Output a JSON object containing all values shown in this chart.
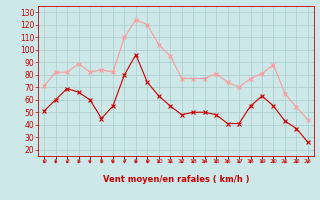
{
  "x": [
    0,
    1,
    2,
    3,
    4,
    5,
    6,
    7,
    8,
    9,
    10,
    11,
    12,
    13,
    14,
    15,
    16,
    17,
    18,
    19,
    20,
    21,
    22,
    23
  ],
  "vent_moyen": [
    51,
    60,
    69,
    66,
    60,
    45,
    55,
    80,
    96,
    74,
    63,
    55,
    48,
    50,
    50,
    48,
    41,
    41,
    55,
    63,
    55,
    43,
    37,
    26
  ],
  "en_rafales": [
    71,
    82,
    82,
    89,
    82,
    84,
    82,
    110,
    124,
    120,
    104,
    95,
    77,
    77,
    77,
    81,
    74,
    70,
    77,
    81,
    88,
    65,
    54,
    44
  ],
  "bg_color": "#cce8e8",
  "grid_color": "#aacccc",
  "moyen_color": "#cc0000",
  "rafales_color": "#ff9999",
  "xlabel": "Vent moyen/en rafales ( km/h )",
  "xlabel_color": "#cc0000",
  "yticks": [
    20,
    30,
    40,
    50,
    60,
    70,
    80,
    90,
    100,
    110,
    120,
    130
  ],
  "ylim": [
    15,
    135
  ],
  "xlim": [
    -0.5,
    23.5
  ]
}
